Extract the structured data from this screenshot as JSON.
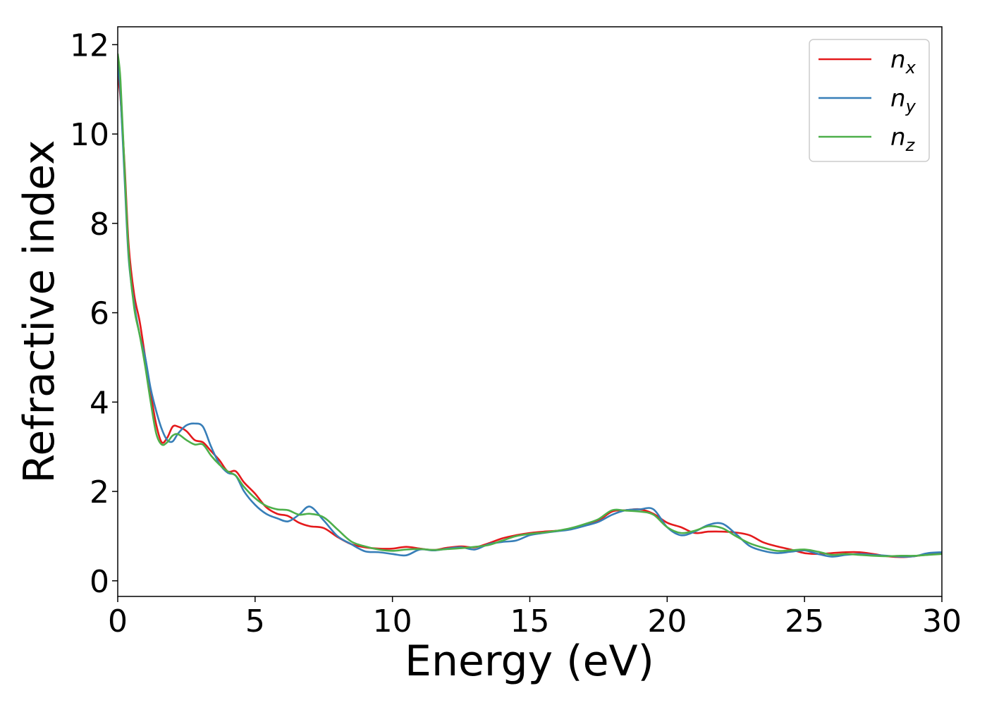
{
  "chart_data": {
    "type": "line",
    "title": "",
    "xlabel": "Energy (eV)",
    "ylabel": "Refractive index",
    "xlim": [
      0,
      30
    ],
    "ylim": [
      -0.35,
      12.4
    ],
    "xticks": [
      0,
      5,
      10,
      15,
      20,
      25,
      30
    ],
    "yticks": [
      0,
      2,
      4,
      6,
      8,
      10,
      12
    ],
    "grid": false,
    "legend": {
      "position": "top-right"
    },
    "series": [
      {
        "name": "n",
        "subscript": "x",
        "color": "#e41a1c",
        "x": [
          0.0,
          0.1,
          0.25,
          0.4,
          0.6,
          0.8,
          1.0,
          1.2,
          1.4,
          1.6,
          1.8,
          2.0,
          2.2,
          2.5,
          2.8,
          3.1,
          3.4,
          3.7,
          4.0,
          4.3,
          4.6,
          5.0,
          5.4,
          5.8,
          6.2,
          6.6,
          7.0,
          7.5,
          8.0,
          8.5,
          9.0,
          9.5,
          10.0,
          10.5,
          11.0,
          11.5,
          12.0,
          12.5,
          13.0,
          13.5,
          14.0,
          14.5,
          15.0,
          15.5,
          16.0,
          16.5,
          17.0,
          17.5,
          18.0,
          18.5,
          19.0,
          19.5,
          20.0,
          20.5,
          21.0,
          21.5,
          22.0,
          22.5,
          23.0,
          23.5,
          24.0,
          24.5,
          25.0,
          25.5,
          26.0,
          26.5,
          27.0,
          27.5,
          28.0,
          28.5,
          29.0,
          29.5,
          30.0
        ],
        "y": [
          11.3,
          10.8,
          9.3,
          7.5,
          6.4,
          5.8,
          5.0,
          4.2,
          3.5,
          3.1,
          3.2,
          3.45,
          3.45,
          3.35,
          3.15,
          3.1,
          2.9,
          2.7,
          2.45,
          2.45,
          2.2,
          1.95,
          1.65,
          1.5,
          1.45,
          1.3,
          1.22,
          1.18,
          0.98,
          0.82,
          0.75,
          0.72,
          0.72,
          0.76,
          0.72,
          0.69,
          0.74,
          0.77,
          0.75,
          0.84,
          0.95,
          1.02,
          1.07,
          1.1,
          1.12,
          1.16,
          1.25,
          1.35,
          1.55,
          1.58,
          1.6,
          1.5,
          1.3,
          1.2,
          1.07,
          1.1,
          1.1,
          1.08,
          1.02,
          0.86,
          0.77,
          0.7,
          0.62,
          0.6,
          0.62,
          0.64,
          0.64,
          0.6,
          0.55,
          0.53,
          0.55,
          0.6,
          0.63
        ]
      },
      {
        "name": "n",
        "subscript": "y",
        "color": "#377eb8",
        "x": [
          0.0,
          0.1,
          0.25,
          0.4,
          0.6,
          0.8,
          1.0,
          1.2,
          1.4,
          1.6,
          1.8,
          2.0,
          2.2,
          2.5,
          2.8,
          3.1,
          3.4,
          3.7,
          4.0,
          4.3,
          4.6,
          5.0,
          5.4,
          5.8,
          6.2,
          6.6,
          7.0,
          7.5,
          8.0,
          8.5,
          9.0,
          9.5,
          10.0,
          10.5,
          11.0,
          11.5,
          12.0,
          12.5,
          13.0,
          13.5,
          14.0,
          14.5,
          15.0,
          15.5,
          16.0,
          16.5,
          17.0,
          17.5,
          18.0,
          18.5,
          19.0,
          19.5,
          20.0,
          20.5,
          21.0,
          21.5,
          22.0,
          22.5,
          23.0,
          23.5,
          24.0,
          24.5,
          25.0,
          25.5,
          26.0,
          26.5,
          27.0,
          27.5,
          28.0,
          28.5,
          29.0,
          29.5,
          30.0
        ],
        "y": [
          11.6,
          10.9,
          9.0,
          7.2,
          6.2,
          5.5,
          5.0,
          4.3,
          3.8,
          3.4,
          3.15,
          3.12,
          3.3,
          3.48,
          3.52,
          3.45,
          3.0,
          2.62,
          2.42,
          2.35,
          2.0,
          1.7,
          1.5,
          1.4,
          1.33,
          1.48,
          1.66,
          1.35,
          1.0,
          0.82,
          0.66,
          0.64,
          0.6,
          0.57,
          0.7,
          0.68,
          0.72,
          0.75,
          0.7,
          0.82,
          0.87,
          0.9,
          1.02,
          1.07,
          1.11,
          1.15,
          1.23,
          1.32,
          1.48,
          1.58,
          1.6,
          1.6,
          1.2,
          1.02,
          1.1,
          1.25,
          1.28,
          1.05,
          0.78,
          0.67,
          0.62,
          0.65,
          0.68,
          0.6,
          0.54,
          0.58,
          0.6,
          0.58,
          0.56,
          0.54,
          0.55,
          0.62,
          0.64
        ]
      },
      {
        "name": "n",
        "subscript": "z",
        "color": "#4daf4a",
        "x": [
          0.0,
          0.1,
          0.25,
          0.4,
          0.6,
          0.8,
          1.0,
          1.2,
          1.4,
          1.6,
          1.8,
          2.0,
          2.2,
          2.5,
          2.8,
          3.1,
          3.4,
          3.7,
          4.0,
          4.3,
          4.6,
          5.0,
          5.4,
          5.8,
          6.2,
          6.6,
          7.0,
          7.5,
          8.0,
          8.5,
          9.0,
          9.5,
          10.0,
          10.5,
          11.0,
          11.5,
          12.0,
          12.5,
          13.0,
          13.5,
          14.0,
          14.5,
          15.0,
          15.5,
          16.0,
          16.5,
          17.0,
          17.5,
          18.0,
          18.5,
          19.0,
          19.5,
          20.0,
          20.5,
          21.0,
          21.5,
          22.0,
          22.5,
          23.0,
          23.5,
          24.0,
          24.5,
          25.0,
          25.5,
          26.0,
          26.5,
          27.0,
          27.5,
          28.0,
          28.5,
          29.0,
          29.5,
          30.0
        ],
        "y": [
          11.8,
          11.2,
          9.2,
          7.3,
          6.1,
          5.5,
          4.8,
          4.0,
          3.3,
          3.05,
          3.1,
          3.25,
          3.28,
          3.15,
          3.05,
          3.05,
          2.8,
          2.6,
          2.45,
          2.35,
          2.1,
          1.85,
          1.68,
          1.6,
          1.58,
          1.48,
          1.5,
          1.42,
          1.15,
          0.88,
          0.77,
          0.7,
          0.67,
          0.7,
          0.71,
          0.69,
          0.71,
          0.73,
          0.76,
          0.8,
          0.9,
          1.0,
          1.05,
          1.08,
          1.12,
          1.18,
          1.27,
          1.38,
          1.58,
          1.57,
          1.55,
          1.48,
          1.2,
          1.07,
          1.12,
          1.22,
          1.18,
          1.0,
          0.84,
          0.74,
          0.67,
          0.68,
          0.7,
          0.65,
          0.58,
          0.6,
          0.58,
          0.56,
          0.55,
          0.56,
          0.56,
          0.58,
          0.6
        ]
      }
    ]
  }
}
